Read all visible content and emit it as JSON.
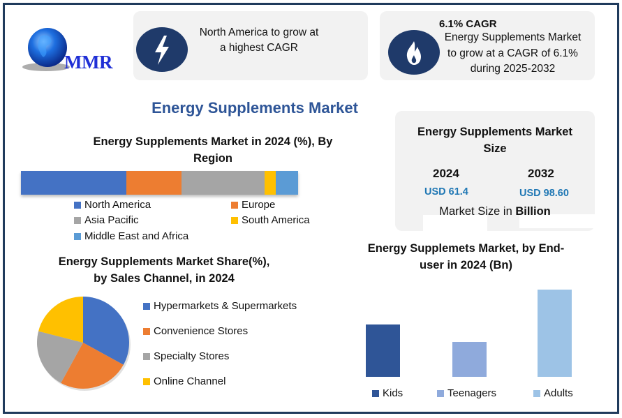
{
  "logo": {
    "text": "MMR"
  },
  "highlights": [
    {
      "icon": "lightning-bolt-icon",
      "text_lines": [
        "North America to grow at",
        "a highest CAGR"
      ]
    },
    {
      "icon": "flame-icon",
      "headline": "6.1% CAGR",
      "text_lines": [
        "Energy Supplements Market",
        "to grow at a CAGR of 6.1%",
        "during 2025-2032"
      ]
    }
  ],
  "main_title": "Energy Supplements Market",
  "market_size": {
    "title_lines": [
      "Energy Supplements Market",
      "Size"
    ],
    "years": [
      {
        "year": "2024",
        "value": "USD 61.4"
      },
      {
        "year": "2032",
        "value": "USD 98.60"
      }
    ],
    "footer_prefix": "Market Size in ",
    "footer_bold": "Billion"
  },
  "colors": {
    "frame": "#1f3a5c",
    "title_blue": "#2e5597",
    "icon_navy": "#1f3a6a",
    "value_blue": "#1f77b4"
  },
  "chart_data": [
    {
      "type": "bar",
      "orientation": "horizontal-stacked-100",
      "title_lines": [
        "Energy Supplements Market in 2024 (%), By",
        "Region"
      ],
      "categories": [
        "North America",
        "Europe",
        "Asia Pacific",
        "South America",
        "Middle East and Africa"
      ],
      "values": [
        38,
        20,
        30,
        4,
        8
      ],
      "colors": [
        "#4472c4",
        "#ed7d31",
        "#a5a5a5",
        "#ffc000",
        "#5b9bd5"
      ],
      "legend": "bottom"
    },
    {
      "type": "pie",
      "title_lines": [
        "Energy Supplements Market Share(%),",
        "by Sales Channel, in 2024"
      ],
      "categories": [
        "Hypermarkets & Supermarkets",
        "Convenience Stores",
        "Specialty Stores",
        "Online Channel"
      ],
      "values": [
        33,
        25,
        21,
        21
      ],
      "colors": [
        "#4472c4",
        "#ed7d31",
        "#a5a5a5",
        "#ffc000"
      ],
      "legend": "right"
    },
    {
      "type": "bar",
      "title_lines": [
        "Energy Supplemets Market, by End-",
        "user in 2024 (Bn)"
      ],
      "categories": [
        "Kids",
        "Teenagers",
        "Adults"
      ],
      "values": [
        15,
        10,
        25
      ],
      "colors": [
        "#2f5597",
        "#8faadc",
        "#9dc3e6"
      ],
      "legend": "bottom"
    }
  ]
}
